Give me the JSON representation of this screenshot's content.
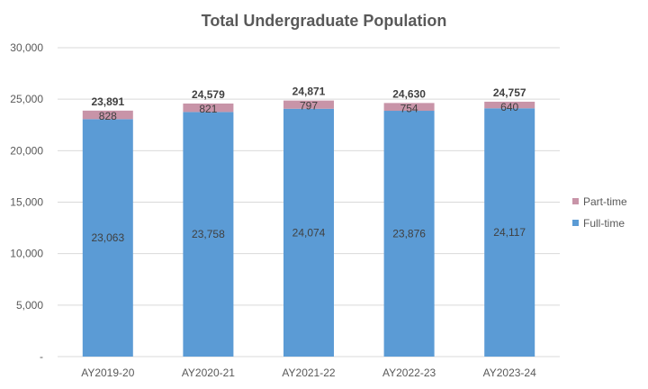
{
  "chart_data": {
    "type": "bar",
    "stacked": true,
    "title": "Total Undergraduate Population",
    "xlabel": "",
    "ylabel": "",
    "categories": [
      "AY2019-20",
      "AY2020-21",
      "AY2021-22",
      "AY2022-23",
      "AY2023-24"
    ],
    "series": [
      {
        "name": "Full-time",
        "values": [
          23063,
          23758,
          24074,
          23876,
          24117
        ],
        "labels": [
          "23,063",
          "23,758",
          "24,074",
          "23,876",
          "24,117"
        ],
        "color": "#5b9bd5"
      },
      {
        "name": "Part-time",
        "values": [
          828,
          821,
          797,
          754,
          640
        ],
        "labels": [
          "828",
          "821",
          "797",
          "754",
          "640"
        ],
        "color": "#c894a8"
      }
    ],
    "totals": [
      "23,891",
      "24,579",
      "24,871",
      "24,630",
      "24,757"
    ],
    "ylim": [
      0,
      30000
    ],
    "yticks": [
      0,
      5000,
      10000,
      15000,
      20000,
      25000,
      30000
    ],
    "ytick_labels": [
      "-",
      "5,000",
      "10,000",
      "15,000",
      "20,000",
      "25,000",
      "30,000"
    ],
    "grid": true,
    "legend_position": "right",
    "legend_order": [
      "Part-time",
      "Full-time"
    ]
  }
}
